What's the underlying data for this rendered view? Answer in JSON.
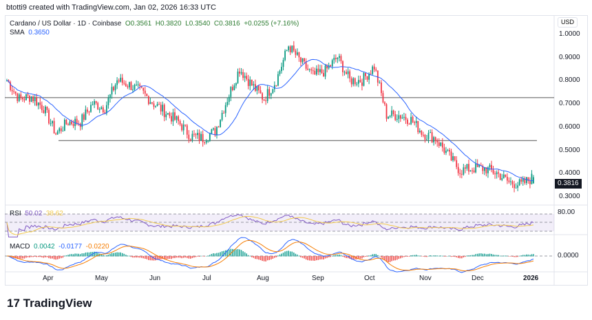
{
  "header": {
    "credit": "btotti9 created with TradingView.com, Jan 02, 2026 16:33 UTC"
  },
  "legend": {
    "symbol": "Cardano / US Dollar · 1D · Coinbase",
    "open": "O0.3561",
    "high": "H0.3820",
    "low": "L0.3540",
    "close": "C0.3816",
    "change": "+0.0255 (+7.16%)",
    "sma_label": "SMA",
    "sma_value": "0.3650"
  },
  "rsi": {
    "label": "RSI",
    "value": "50.02",
    "ma": "38.62",
    "level": "80.00"
  },
  "macd": {
    "label": "MACD",
    "hist": "0.0042",
    "macd": "-0.0177",
    "signal": "-0.0220",
    "level": "0.0000"
  },
  "price_axis": {
    "currency": "USD",
    "ticks": [
      "1.0000",
      "0.9000",
      "0.8000",
      "0.7000",
      "0.6000",
      "0.5000",
      "0.4000",
      "0.3000"
    ],
    "last": "0.3816"
  },
  "time_axis": [
    "Apr",
    "May",
    "Jun",
    "Jul",
    "Aug",
    "Sep",
    "Oct",
    "Nov",
    "Dec",
    "2026"
  ],
  "logo": "TradingView",
  "colors": {
    "up": "#089981",
    "down": "#f23645",
    "sma": "#2962ff",
    "rsi": "#7e57c2",
    "rsi_ma": "#f2c94c",
    "macd": "#2962ff",
    "signal": "#f57c00"
  },
  "chart_data": {
    "type": "candlestick",
    "interval": "weekly approximate closes",
    "x": [
      "2025-03-08",
      "2025-03-15",
      "2025-03-22",
      "2025-03-29",
      "2025-04-05",
      "2025-04-12",
      "2025-04-19",
      "2025-04-26",
      "2025-05-03",
      "2025-05-10",
      "2025-05-17",
      "2025-05-24",
      "2025-05-31",
      "2025-06-07",
      "2025-06-14",
      "2025-06-21",
      "2025-06-28",
      "2025-07-05",
      "2025-07-12",
      "2025-07-19",
      "2025-07-26",
      "2025-08-02",
      "2025-08-09",
      "2025-08-16",
      "2025-08-23",
      "2025-08-30",
      "2025-09-06",
      "2025-09-13",
      "2025-09-20",
      "2025-09-27",
      "2025-10-04",
      "2025-10-11",
      "2025-10-18",
      "2025-10-25",
      "2025-11-01",
      "2025-11-08",
      "2025-11-15",
      "2025-11-22",
      "2025-11-29",
      "2025-12-06",
      "2025-12-13",
      "2025-12-20",
      "2025-12-27",
      "2026-01-02"
    ],
    "close": [
      0.8,
      0.72,
      0.73,
      0.68,
      0.57,
      0.62,
      0.62,
      0.7,
      0.68,
      0.8,
      0.78,
      0.75,
      0.7,
      0.66,
      0.62,
      0.56,
      0.55,
      0.58,
      0.72,
      0.85,
      0.78,
      0.72,
      0.8,
      0.95,
      0.88,
      0.82,
      0.84,
      0.9,
      0.8,
      0.8,
      0.86,
      0.65,
      0.65,
      0.63,
      0.57,
      0.55,
      0.48,
      0.41,
      0.42,
      0.42,
      0.4,
      0.36,
      0.35,
      0.3816
    ],
    "horizontal_lines": [
      0.725,
      0.54
    ],
    "ylim": [
      0.28,
      1.03
    ]
  }
}
